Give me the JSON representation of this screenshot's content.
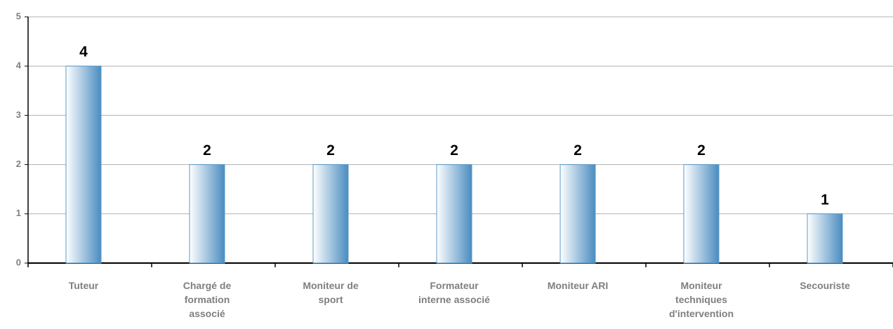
{
  "chart_data": {
    "type": "bar",
    "categories": [
      "Tuteur",
      "Chargé de formation associé",
      "Moniteur de sport",
      "Formateur interne associé",
      "Moniteur ARI",
      "Moniteur techniques d'intervention",
      "Secouriste"
    ],
    "values": [
      4,
      2,
      2,
      2,
      2,
      2,
      1
    ],
    "color": "#4a8cc0",
    "ylim": [
      0,
      5
    ],
    "yticks": [
      0,
      1,
      2,
      3,
      4,
      5
    ],
    "grid": true
  }
}
